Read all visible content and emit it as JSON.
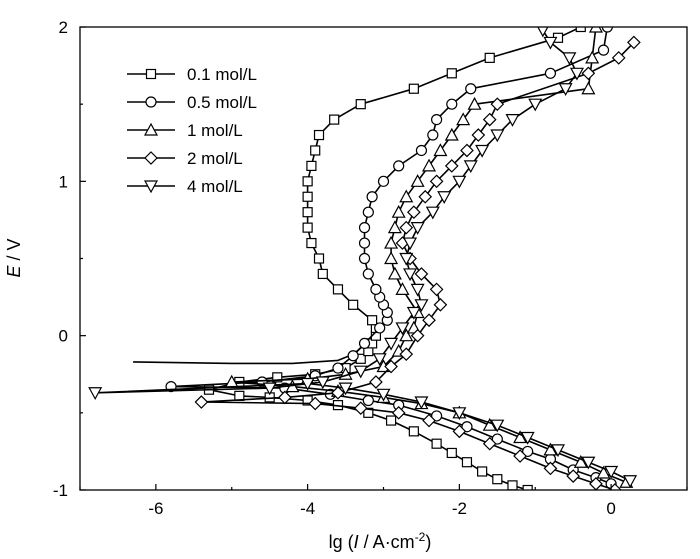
{
  "chart_data": {
    "type": "line",
    "xlabel": {
      "prefix": "lg (",
      "italic": "I",
      "middle": " / A·cm",
      "sup": "-2",
      "suffix": ")"
    },
    "ylabel": {
      "italic": "E",
      "suffix": " / V"
    },
    "xlim": [
      -7,
      1
    ],
    "ylim": [
      -1,
      2
    ],
    "xticks": [
      -6,
      -4,
      -2,
      0
    ],
    "yticks": [
      -1,
      0,
      1,
      2
    ],
    "grid": false,
    "legend_position": "top-left",
    "series": [
      {
        "name": "0.1 mol/L",
        "marker": "square",
        "markers": [
          [
            -1.1,
            -1.0
          ],
          [
            -1.3,
            -0.97
          ],
          [
            -1.5,
            -0.93
          ],
          [
            -1.7,
            -0.88
          ],
          [
            -1.9,
            -0.82
          ],
          [
            -2.1,
            -0.76
          ],
          [
            -2.3,
            -0.7
          ],
          [
            -2.6,
            -0.62
          ],
          [
            -2.9,
            -0.55
          ],
          [
            -3.2,
            -0.5
          ],
          [
            -3.6,
            -0.45
          ],
          [
            -4.0,
            -0.42
          ],
          [
            -4.5,
            -0.4
          ],
          [
            -4.9,
            -0.39
          ],
          [
            -5.3,
            -0.35
          ],
          [
            -4.9,
            -0.3
          ],
          [
            -4.4,
            -0.27
          ],
          [
            -3.9,
            -0.25
          ],
          [
            -3.5,
            -0.21
          ],
          [
            -3.3,
            -0.15
          ],
          [
            -3.2,
            -0.1
          ],
          [
            -3.15,
            -0.05
          ],
          [
            -3.1,
            0.0
          ],
          [
            -3.1,
            0.05
          ],
          [
            -3.15,
            0.1
          ],
          [
            -3.4,
            0.2
          ],
          [
            -3.6,
            0.3
          ],
          [
            -3.8,
            0.4
          ],
          [
            -3.85,
            0.5
          ],
          [
            -3.95,
            0.6
          ],
          [
            -4.0,
            0.7
          ],
          [
            -4.0,
            0.8
          ],
          [
            -4.0,
            0.9
          ],
          [
            -4.0,
            1.0
          ],
          [
            -3.95,
            1.1
          ],
          [
            -3.9,
            1.2
          ],
          [
            -3.85,
            1.3
          ],
          [
            -3.65,
            1.4
          ],
          [
            -3.3,
            1.5
          ],
          [
            -2.6,
            1.6
          ],
          [
            -2.1,
            1.7
          ],
          [
            -1.6,
            1.8
          ],
          [
            -0.7,
            1.93
          ],
          [
            -0.4,
            2.0
          ]
        ],
        "extra_line": [
          [
            -6.3,
            -0.17
          ],
          [
            -5.0,
            -0.18
          ],
          [
            -4.2,
            -0.18
          ],
          [
            -3.6,
            -0.16
          ],
          [
            -3.4,
            -0.12
          ],
          [
            -3.25,
            -0.06
          ],
          [
            -3.1,
            0.0
          ]
        ]
      },
      {
        "name": "0.5 mol/L",
        "marker": "circle",
        "markers": [
          [
            0.0,
            -0.96
          ],
          [
            -0.2,
            -0.92
          ],
          [
            -0.5,
            -0.87
          ],
          [
            -0.8,
            -0.8
          ],
          [
            -1.1,
            -0.75
          ],
          [
            -1.5,
            -0.67
          ],
          [
            -1.9,
            -0.59
          ],
          [
            -2.3,
            -0.52
          ],
          [
            -2.8,
            -0.45
          ],
          [
            -3.2,
            -0.42
          ],
          [
            -3.7,
            -0.38
          ],
          [
            -4.3,
            -0.34
          ],
          [
            -5.8,
            -0.33
          ],
          [
            -4.6,
            -0.3
          ],
          [
            -3.9,
            -0.26
          ],
          [
            -3.6,
            -0.21
          ],
          [
            -3.4,
            -0.13
          ],
          [
            -3.25,
            -0.05
          ],
          [
            -3.05,
            0.05
          ],
          [
            -2.95,
            0.1
          ],
          [
            -2.95,
            0.15
          ],
          [
            -3.0,
            0.2
          ],
          [
            -3.05,
            0.25
          ],
          [
            -3.1,
            0.3
          ],
          [
            -3.2,
            0.4
          ],
          [
            -3.25,
            0.5
          ],
          [
            -3.25,
            0.6
          ],
          [
            -3.25,
            0.7
          ],
          [
            -3.2,
            0.8
          ],
          [
            -3.15,
            0.9
          ],
          [
            -3.0,
            1.0
          ],
          [
            -2.8,
            1.1
          ],
          [
            -2.5,
            1.2
          ],
          [
            -2.35,
            1.3
          ],
          [
            -2.3,
            1.4
          ],
          [
            -2.1,
            1.5
          ],
          [
            -1.85,
            1.6
          ],
          [
            -0.8,
            1.7
          ],
          [
            -0.1,
            1.85
          ],
          [
            -0.05,
            2.0
          ]
        ]
      },
      {
        "name": "1 mol/L",
        "marker": "triangle-up",
        "markers": [
          [
            0.2,
            -0.95
          ],
          [
            -0.1,
            -0.89
          ],
          [
            -0.4,
            -0.82
          ],
          [
            -0.8,
            -0.74
          ],
          [
            -1.2,
            -0.66
          ],
          [
            -1.6,
            -0.58
          ],
          [
            -2.0,
            -0.5
          ],
          [
            -2.5,
            -0.44
          ],
          [
            -3.0,
            -0.4
          ],
          [
            -3.6,
            -0.36
          ],
          [
            -4.2,
            -0.33
          ],
          [
            -5.0,
            -0.3
          ],
          [
            -4.0,
            -0.28
          ],
          [
            -3.5,
            -0.25
          ],
          [
            -3.0,
            -0.2
          ],
          [
            -2.8,
            -0.1
          ],
          [
            -2.7,
            0.0
          ],
          [
            -2.6,
            0.05
          ],
          [
            -2.55,
            0.15
          ],
          [
            -2.75,
            0.3
          ],
          [
            -2.85,
            0.4
          ],
          [
            -2.9,
            0.5
          ],
          [
            -2.9,
            0.6
          ],
          [
            -2.85,
            0.7
          ],
          [
            -2.8,
            0.8
          ],
          [
            -2.7,
            0.9
          ],
          [
            -2.55,
            1.0
          ],
          [
            -2.4,
            1.1
          ],
          [
            -2.25,
            1.2
          ],
          [
            -2.1,
            1.3
          ],
          [
            -1.95,
            1.4
          ],
          [
            -1.8,
            1.5
          ],
          [
            -0.3,
            1.6
          ],
          [
            -0.25,
            1.8
          ],
          [
            -0.2,
            2.0
          ]
        ]
      },
      {
        "name": "2 mol/L",
        "marker": "diamond",
        "markers": [
          [
            0.05,
            -1.0
          ],
          [
            -0.2,
            -0.96
          ],
          [
            -0.5,
            -0.91
          ],
          [
            -0.8,
            -0.86
          ],
          [
            -1.2,
            -0.78
          ],
          [
            -1.6,
            -0.7
          ],
          [
            -2.0,
            -0.62
          ],
          [
            -2.4,
            -0.55
          ],
          [
            -2.8,
            -0.5
          ],
          [
            -3.3,
            -0.47
          ],
          [
            -3.9,
            -0.44
          ],
          [
            -5.4,
            -0.43
          ],
          [
            -4.3,
            -0.4
          ],
          [
            -3.6,
            -0.37
          ],
          [
            -3.1,
            -0.3
          ],
          [
            -2.9,
            -0.2
          ],
          [
            -2.7,
            -0.12
          ],
          [
            -2.55,
            0.0
          ],
          [
            -2.4,
            0.1
          ],
          [
            -2.25,
            0.2
          ],
          [
            -2.3,
            0.3
          ],
          [
            -2.5,
            0.4
          ],
          [
            -2.65,
            0.5
          ],
          [
            -2.75,
            0.6
          ],
          [
            -2.7,
            0.7
          ],
          [
            -2.6,
            0.8
          ],
          [
            -2.45,
            0.9
          ],
          [
            -2.3,
            1.0
          ],
          [
            -2.1,
            1.1
          ],
          [
            -1.9,
            1.2
          ],
          [
            -1.75,
            1.3
          ],
          [
            -1.6,
            1.4
          ],
          [
            -1.5,
            1.5
          ],
          [
            -0.3,
            1.7
          ],
          [
            0.1,
            1.8
          ],
          [
            0.3,
            1.9
          ]
        ]
      },
      {
        "name": "4 mol/L",
        "marker": "triangle-down",
        "markers": [
          [
            0.25,
            -0.94
          ],
          [
            0.0,
            -0.88
          ],
          [
            -0.3,
            -0.82
          ],
          [
            -0.7,
            -0.74
          ],
          [
            -1.1,
            -0.66
          ],
          [
            -1.5,
            -0.58
          ],
          [
            -2.0,
            -0.5
          ],
          [
            -2.5,
            -0.43
          ],
          [
            -3.0,
            -0.38
          ],
          [
            -3.5,
            -0.34
          ],
          [
            -4.0,
            -0.31
          ],
          [
            -6.8,
            -0.37
          ],
          [
            -4.5,
            -0.34
          ],
          [
            -3.8,
            -0.3
          ],
          [
            -3.3,
            -0.23
          ],
          [
            -3.05,
            -0.15
          ],
          [
            -2.9,
            -0.05
          ],
          [
            -2.75,
            0.05
          ],
          [
            -2.6,
            0.15
          ],
          [
            -2.5,
            0.2
          ],
          [
            -2.55,
            0.3
          ],
          [
            -2.65,
            0.4
          ],
          [
            -2.7,
            0.5
          ],
          [
            -2.65,
            0.6
          ],
          [
            -2.55,
            0.7
          ],
          [
            -2.35,
            0.8
          ],
          [
            -2.2,
            0.9
          ],
          [
            -2.0,
            1.0
          ],
          [
            -1.85,
            1.1
          ],
          [
            -1.7,
            1.2
          ],
          [
            -1.5,
            1.3
          ],
          [
            -1.3,
            1.4
          ],
          [
            -1.0,
            1.5
          ],
          [
            -0.6,
            1.6
          ],
          [
            -0.45,
            1.7
          ],
          [
            -0.55,
            1.8
          ],
          [
            -0.8,
            1.9
          ],
          [
            -0.9,
            1.98
          ]
        ]
      }
    ]
  }
}
